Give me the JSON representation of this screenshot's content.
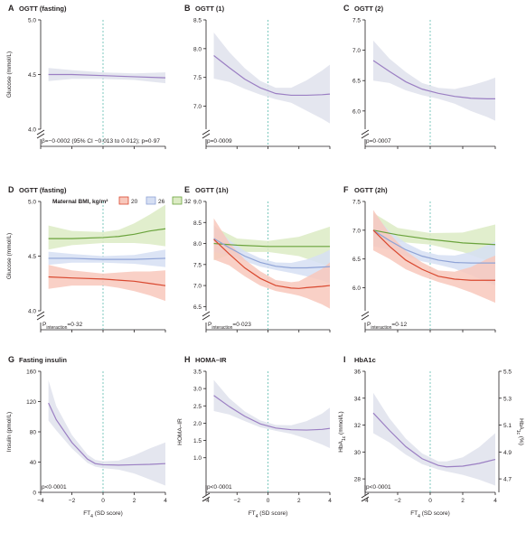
{
  "colors": {
    "purple": "#9b7fc3",
    "band": "#dfe2ec",
    "red": "#d9482f",
    "red_band": "#f8c8bc",
    "blue": "#8fa3d6",
    "blue_band": "#d6dff3",
    "green": "#6aa33c",
    "green_band": "#dcebc4",
    "refline": "#6fc4b8"
  },
  "shared": {
    "x_label_prefix": "FT",
    "x_label_sub": "4",
    "x_label_suffix": " (SD score)",
    "glucose_label": "Glucose (mmol/L)",
    "insulin_label": "Insulin (pmol/L)",
    "homa_label": "HOMA–IR",
    "hba1c_mmol_prefix": "HbA",
    "hba1c_mmol_sub": "1c",
    "hba1c_mmol_suffix": " (mmol/L)",
    "hba1c_pct_prefix": "HbA",
    "hba1c_pct_sub": "1c",
    "hba1c_pct_suffix": " (%)",
    "p_interaction_prefix": "P",
    "p_interaction_sub": "interaction",
    "legend_title": "Maternal BMI, kg/m²",
    "legend_items": [
      "20",
      "26",
      "32"
    ],
    "x_ticks": [
      "−4",
      "−2",
      "0",
      "2",
      "4"
    ]
  },
  "chart_data": [
    {
      "type": "line",
      "panel": "A",
      "title": "OGTT (fasting)",
      "xlim": [
        -4,
        4
      ],
      "ylim": [
        4.0,
        5.0
      ],
      "yticks": [
        "4.0",
        "4.5",
        "5.0"
      ],
      "ylabel": "Glucose (mmol/L)",
      "axis_break": true,
      "annotation": "β=−0·0002 (95% CI −0·013 to 0·012); p=0·97",
      "series": [
        {
          "color": "purple",
          "x": [
            -3.5,
            -2,
            0,
            2,
            4
          ],
          "y": [
            4.5,
            4.5,
            4.49,
            4.48,
            4.47
          ],
          "lower": [
            4.44,
            4.46,
            4.46,
            4.45,
            4.42
          ],
          "upper": [
            4.56,
            4.54,
            4.52,
            4.51,
            4.52
          ]
        }
      ]
    },
    {
      "type": "line",
      "panel": "B",
      "title": "OGTT (1)",
      "xlim": [
        -4,
        4
      ],
      "ylim": [
        6.6,
        8.5
      ],
      "yticks": [
        "7.0",
        "7.5",
        "8.0",
        "8.5"
      ],
      "axis_break": true,
      "annotation": "p=0·0009",
      "series": [
        {
          "color": "purple",
          "x": [
            -3.5,
            -2.5,
            -1.5,
            -0.5,
            0.5,
            1.5,
            2.5,
            3.5,
            4
          ],
          "y": [
            7.88,
            7.67,
            7.47,
            7.32,
            7.22,
            7.19,
            7.19,
            7.2,
            7.21
          ],
          "lower": [
            7.48,
            7.42,
            7.3,
            7.2,
            7.12,
            7.06,
            6.92,
            6.78,
            6.7
          ],
          "upper": [
            8.28,
            7.94,
            7.66,
            7.44,
            7.32,
            7.32,
            7.45,
            7.62,
            7.72
          ]
        }
      ]
    },
    {
      "type": "line",
      "panel": "C",
      "title": "OGTT (2)",
      "xlim": [
        -4,
        4
      ],
      "ylim": [
        5.7,
        7.5
      ],
      "yticks": [
        "6.0",
        "6.5",
        "7.0",
        "7.5"
      ],
      "axis_break": true,
      "annotation": "p=0·0007",
      "series": [
        {
          "color": "purple",
          "x": [
            -3.5,
            -2.5,
            -1.5,
            -0.5,
            0.5,
            1.5,
            2.5,
            3.5,
            4
          ],
          "y": [
            6.83,
            6.65,
            6.48,
            6.36,
            6.29,
            6.24,
            6.21,
            6.2,
            6.2
          ],
          "lower": [
            6.5,
            6.46,
            6.34,
            6.26,
            6.2,
            6.12,
            6.0,
            5.9,
            5.84
          ],
          "upper": [
            7.16,
            6.86,
            6.64,
            6.46,
            6.38,
            6.36,
            6.42,
            6.5,
            6.55
          ]
        }
      ]
    },
    {
      "type": "line",
      "panel": "D",
      "title": "OGTT (fasting)",
      "xlim": [
        -4,
        4
      ],
      "ylim": [
        4.0,
        5.0
      ],
      "yticks": [
        "4.0",
        "4.5",
        "5.0"
      ],
      "ylabel": "Glucose (mmol/L)",
      "axis_break": true,
      "annotation_value": "=0·32",
      "legend": true,
      "series": [
        {
          "name": "32",
          "color": "green",
          "x": [
            -3.5,
            -2,
            0,
            1,
            2,
            3,
            4
          ],
          "y": [
            4.66,
            4.66,
            4.67,
            4.68,
            4.7,
            4.73,
            4.75
          ],
          "lower": [
            4.56,
            4.6,
            4.62,
            4.62,
            4.62,
            4.61,
            4.59
          ],
          "upper": [
            4.78,
            4.73,
            4.72,
            4.74,
            4.8,
            4.88,
            4.97
          ]
        },
        {
          "name": "26",
          "color": "blue",
          "x": [
            -3.5,
            -2,
            0,
            2,
            4
          ],
          "y": [
            4.48,
            4.48,
            4.47,
            4.47,
            4.48
          ],
          "lower": [
            4.42,
            4.44,
            4.44,
            4.43,
            4.4
          ],
          "upper": [
            4.54,
            4.52,
            4.5,
            4.51,
            4.56
          ]
        },
        {
          "name": "20",
          "color": "red",
          "x": [
            -3.5,
            -2,
            0,
            1,
            2,
            3,
            4
          ],
          "y": [
            4.31,
            4.3,
            4.29,
            4.28,
            4.27,
            4.25,
            4.23
          ],
          "lower": [
            4.2,
            4.23,
            4.23,
            4.21,
            4.18,
            4.14,
            4.09
          ],
          "upper": [
            4.42,
            4.37,
            4.34,
            4.35,
            4.36,
            4.36,
            4.37
          ]
        }
      ]
    },
    {
      "type": "line",
      "panel": "E",
      "title": "OGTT (1h)",
      "xlim": [
        -4,
        4
      ],
      "ylim": [
        6.4,
        9.0
      ],
      "yticks": [
        "6.5",
        "7.0",
        "7.5",
        "8.0",
        "8.5",
        "9.0"
      ],
      "axis_break": true,
      "annotation_value": "=0·023",
      "series": [
        {
          "name": "32",
          "color": "green",
          "x": [
            -3.5,
            -2,
            0,
            2,
            4
          ],
          "y": [
            8.0,
            7.96,
            7.93,
            7.93,
            7.93
          ],
          "lower": [
            7.6,
            7.8,
            7.8,
            7.7,
            7.45
          ],
          "upper": [
            8.4,
            8.12,
            8.06,
            8.16,
            8.4
          ]
        },
        {
          "name": "26",
          "color": "blue",
          "x": [
            -3.5,
            -2.5,
            -1.5,
            -0.5,
            0.5,
            1.5,
            2.5,
            3.5,
            4
          ],
          "y": [
            8.12,
            7.9,
            7.7,
            7.55,
            7.46,
            7.42,
            7.42,
            7.44,
            7.45
          ],
          "lower": [
            7.8,
            7.72,
            7.58,
            7.45,
            7.37,
            7.3,
            7.22,
            7.12,
            7.05
          ],
          "upper": [
            8.44,
            8.08,
            7.82,
            7.65,
            7.55,
            7.54,
            7.62,
            7.76,
            7.85
          ]
        },
        {
          "name": "20",
          "color": "red",
          "x": [
            -3.5,
            -2.5,
            -1.5,
            -0.5,
            0.5,
            1.5,
            2,
            2.5,
            3.5,
            4
          ],
          "y": [
            8.1,
            7.75,
            7.42,
            7.17,
            7.0,
            6.94,
            6.93,
            6.95,
            6.98,
            7.0
          ],
          "lower": [
            7.62,
            7.48,
            7.22,
            7.0,
            6.87,
            6.8,
            6.76,
            6.7,
            6.55,
            6.45
          ],
          "upper": [
            8.6,
            8.02,
            7.62,
            7.34,
            7.13,
            7.08,
            7.1,
            7.2,
            7.4,
            7.55
          ]
        }
      ]
    },
    {
      "type": "line",
      "panel": "F",
      "title": "OGTT (2h)",
      "xlim": [
        -4,
        4
      ],
      "ylim": [
        5.6,
        7.5
      ],
      "yticks": [
        "6.0",
        "6.5",
        "7.0",
        "7.5"
      ],
      "axis_break": true,
      "annotation_value": "=0·12",
      "series": [
        {
          "name": "32",
          "color": "green",
          "x": [
            -3.5,
            -2,
            0,
            2,
            4
          ],
          "y": [
            7.0,
            6.92,
            6.84,
            6.78,
            6.75
          ],
          "lower": [
            6.72,
            6.8,
            6.75,
            6.62,
            6.42
          ],
          "upper": [
            7.3,
            7.04,
            6.95,
            6.96,
            7.1
          ]
        },
        {
          "name": "26",
          "color": "blue",
          "x": [
            -3.5,
            -2.5,
            -1.5,
            -0.5,
            0.5,
            1.5,
            2.5,
            3.5,
            4
          ],
          "y": [
            7.0,
            6.82,
            6.66,
            6.55,
            6.48,
            6.44,
            6.43,
            6.43,
            6.43
          ],
          "lower": [
            6.72,
            6.66,
            6.55,
            6.46,
            6.4,
            6.33,
            6.22,
            6.1,
            6.04
          ],
          "upper": [
            7.3,
            6.98,
            6.78,
            6.64,
            6.57,
            6.56,
            6.62,
            6.74,
            6.8
          ]
        },
        {
          "name": "20",
          "color": "red",
          "x": [
            -3.5,
            -2.5,
            -1.5,
            -0.5,
            0.5,
            1.5,
            2.5,
            3.5,
            4
          ],
          "y": [
            7.0,
            6.72,
            6.48,
            6.32,
            6.2,
            6.15,
            6.13,
            6.13,
            6.13
          ],
          "lower": [
            6.65,
            6.5,
            6.32,
            6.2,
            6.1,
            6.02,
            5.92,
            5.8,
            5.74
          ],
          "upper": [
            7.35,
            6.94,
            6.64,
            6.44,
            6.3,
            6.28,
            6.36,
            6.5,
            6.56
          ]
        }
      ]
    },
    {
      "type": "line",
      "panel": "G",
      "title": "Fasting insulin",
      "xlim": [
        -4,
        4
      ],
      "ylim": [
        0,
        160
      ],
      "yticks": [
        "0",
        "40",
        "80",
        "120",
        "160"
      ],
      "ylabel": "Insulin (pmol/L)",
      "axis_break": false,
      "annotation": "p<0·0001",
      "series": [
        {
          "color": "purple",
          "x": [
            -3.5,
            -3,
            -2,
            -1,
            -0.5,
            0,
            1,
            2,
            3,
            4
          ],
          "y": [
            118,
            96,
            66,
            44,
            38,
            36.5,
            36,
            36.5,
            37,
            38
          ],
          "lower": [
            95,
            82,
            58,
            39,
            34,
            32,
            30,
            25,
            17,
            9
          ],
          "upper": [
            148,
            114,
            76,
            50,
            43,
            41,
            42,
            49,
            58,
            66
          ]
        }
      ]
    },
    {
      "type": "line",
      "panel": "H",
      "title": "HOMA–IR",
      "xlim": [
        -4,
        4
      ],
      "ylim": [
        0,
        3.5
      ],
      "yticks": [
        "1.0",
        "1.5",
        "2.0",
        "2.5",
        "3.0",
        "3.5"
      ],
      "ylabel": "HOMA–IR",
      "axis_break": true,
      "annotation": "p<0·0001",
      "series": [
        {
          "color": "purple",
          "x": [
            -3.5,
            -2.5,
            -1.5,
            -0.5,
            0.5,
            1.5,
            2.5,
            3.5,
            4
          ],
          "y": [
            2.8,
            2.48,
            2.2,
            1.98,
            1.86,
            1.81,
            1.8,
            1.82,
            1.85
          ],
          "lower": [
            2.35,
            2.25,
            2.06,
            1.88,
            1.78,
            1.69,
            1.55,
            1.38,
            1.28
          ],
          "upper": [
            3.25,
            2.72,
            2.34,
            2.08,
            1.95,
            1.94,
            2.06,
            2.28,
            2.45
          ]
        }
      ]
    },
    {
      "type": "line",
      "panel": "I",
      "title": "HbA1c",
      "xlim": [
        -4,
        4
      ],
      "ylim": [
        27,
        36
      ],
      "yticks": [
        "28",
        "30",
        "32",
        "34",
        "36"
      ],
      "right_yticks": [
        "4.7",
        "4.9",
        "5.1",
        "5.3",
        "5.5"
      ],
      "axis_break": true,
      "annotation": "p<0·0001",
      "series": [
        {
          "color": "purple",
          "x": [
            -3.5,
            -2.5,
            -1.5,
            -0.5,
            0.5,
            1,
            2,
            3,
            4
          ],
          "y": [
            32.9,
            31.6,
            30.4,
            29.5,
            29.0,
            28.9,
            28.95,
            29.15,
            29.45
          ],
          "lower": [
            31.4,
            30.7,
            29.8,
            29.1,
            28.7,
            28.55,
            28.3,
            27.95,
            27.5
          ],
          "upper": [
            34.4,
            32.5,
            31.0,
            29.9,
            29.3,
            29.3,
            29.6,
            30.35,
            31.4
          ]
        }
      ]
    }
  ]
}
